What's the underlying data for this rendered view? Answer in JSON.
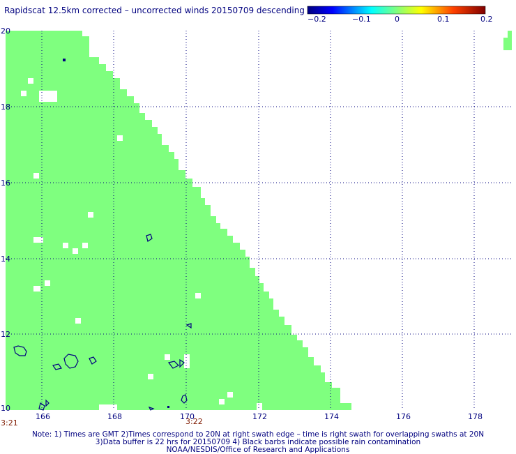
{
  "title": "Rapidscat 12.5km corrected – uncorrected winds 20150709 descending",
  "colorbar": {
    "labels": [
      "−0.2",
      "−0.1",
      "0",
      "0.1",
      "0.2"
    ],
    "colors": [
      "#00007f",
      "#0000ff",
      "#00ffff",
      "#7fff7f",
      "#ffff00",
      "#ff7f00",
      "#ff0000",
      "#7f0000"
    ]
  },
  "axes": {
    "lat_labels": [
      "20",
      "18",
      "16",
      "14",
      "12",
      "10"
    ],
    "lon_labels": [
      "166",
      "168",
      "170",
      "172",
      "174",
      "176",
      "178"
    ],
    "lat_range": [
      10,
      20
    ],
    "lon_range": [
      165,
      179
    ]
  },
  "times": {
    "left": "3:21",
    "middle": "3:22"
  },
  "swath_color": "#7fff7f",
  "contour_color": "#00007f",
  "grid_color": "#00007f",
  "notes": {
    "line1": "Note: 1) Times are GMT 2)Times correspond to 20N at right swath edge – time is right swath for overlapping swaths at 20N",
    "line2": "3)Data buffer is 22 hrs for 20150709 4) Black barbs indicate possible rain contamination",
    "line3": "NOAA/NESDIS/Office of Research and Applications"
  }
}
